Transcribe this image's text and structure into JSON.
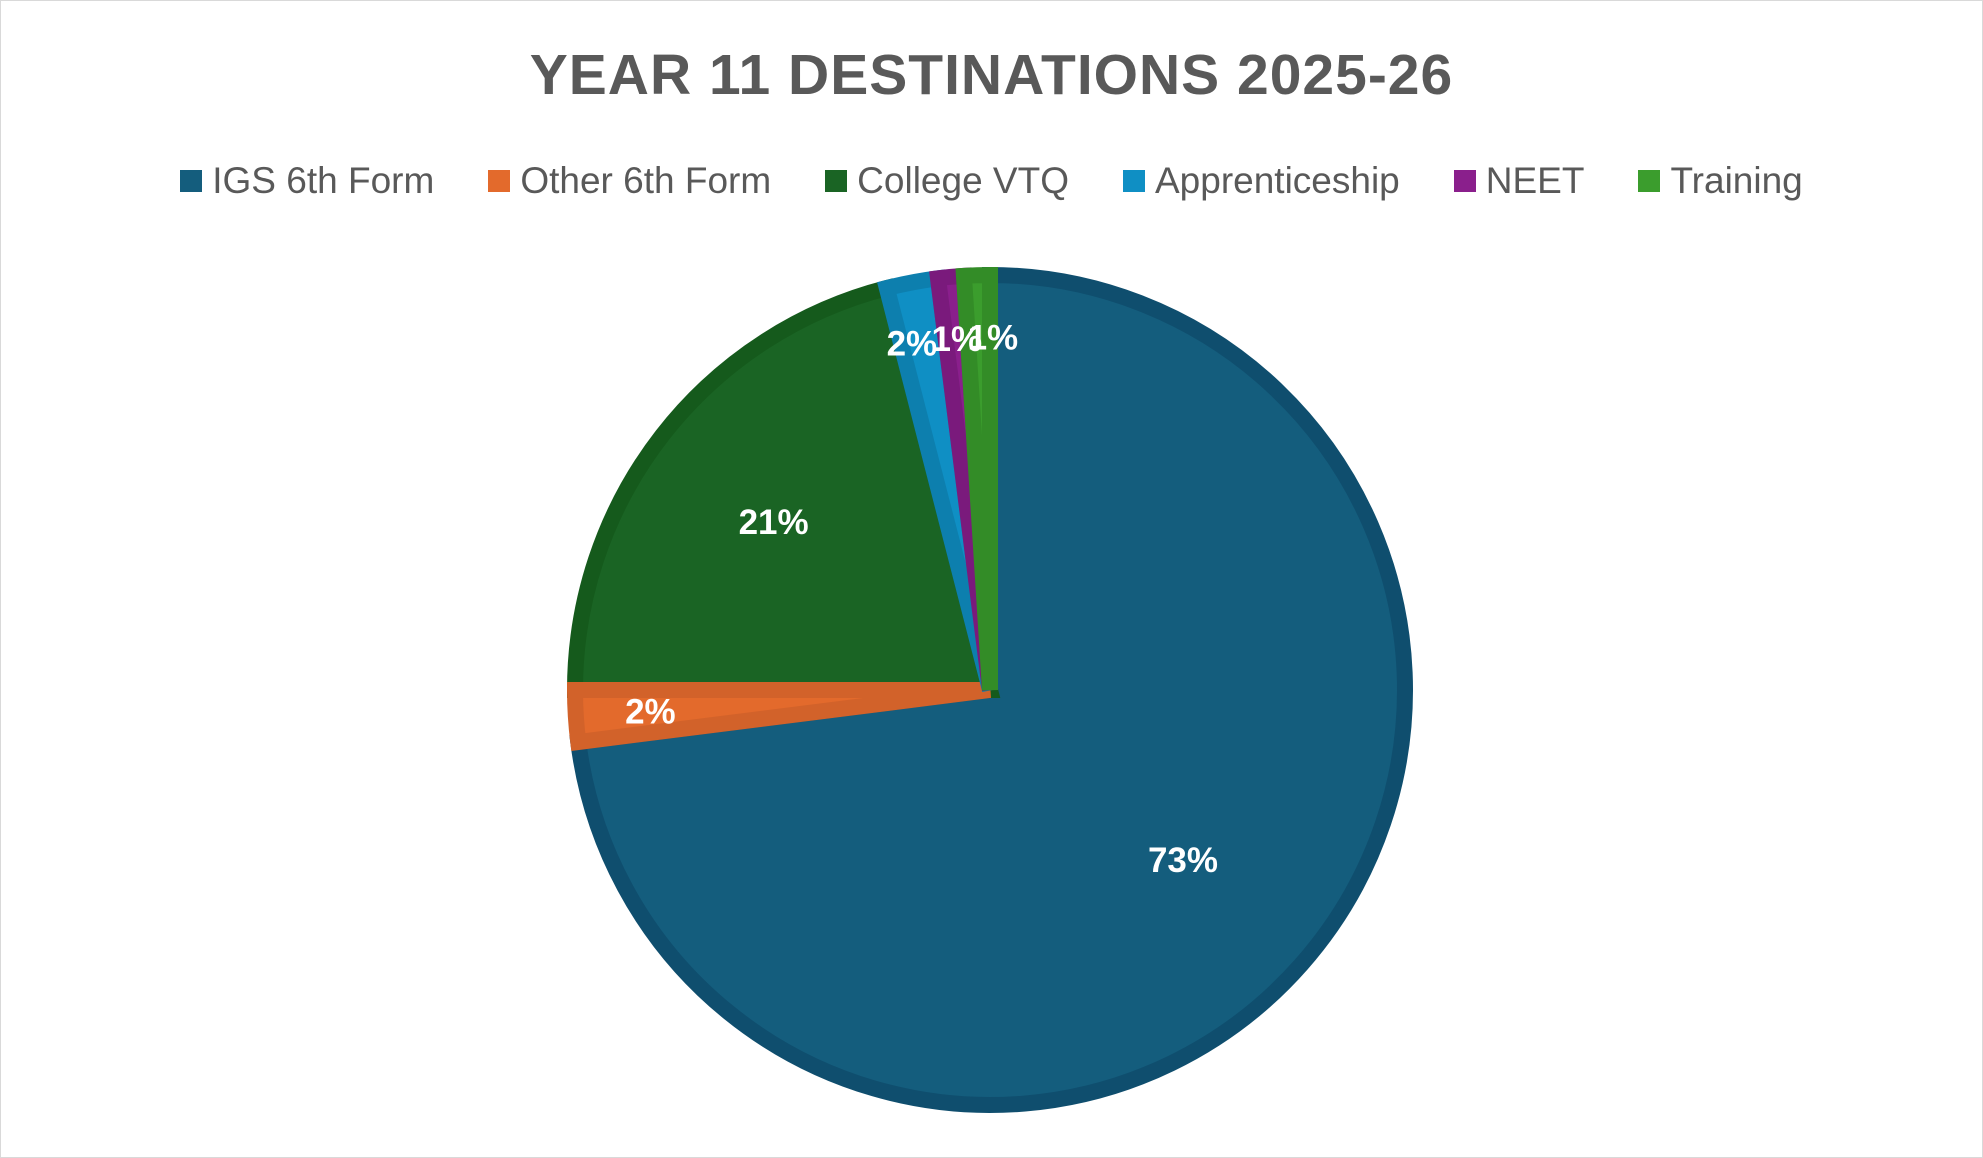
{
  "chart_data": {
    "type": "pie",
    "title": "YEAR 11 DESTINATIONS 2025-26",
    "legend_position": "top",
    "slices": [
      {
        "name": "IGS 6th Form",
        "value": 73,
        "label": "73%",
        "color": "#145d7d",
        "edge": "#0f4e6e"
      },
      {
        "name": "Other 6th Form",
        "value": 2,
        "label": "2%",
        "color": "#e36a2c",
        "edge": "#d2622a"
      },
      {
        "name": "College VTQ",
        "value": 21,
        "label": "21%",
        "color": "#1a6424",
        "edge": "#155a1c"
      },
      {
        "name": "Apprenticeship",
        "value": 2,
        "label": "2%",
        "color": "#0f8fc4",
        "edge": "#0d7fae"
      },
      {
        "name": "NEET",
        "value": 1,
        "label": "1%",
        "color": "#8a1f8c",
        "edge": "#7a1a7c"
      },
      {
        "name": "Training",
        "value": 1,
        "label": "1%",
        "color": "#3b9d2d",
        "edge": "#338c27"
      }
    ]
  }
}
